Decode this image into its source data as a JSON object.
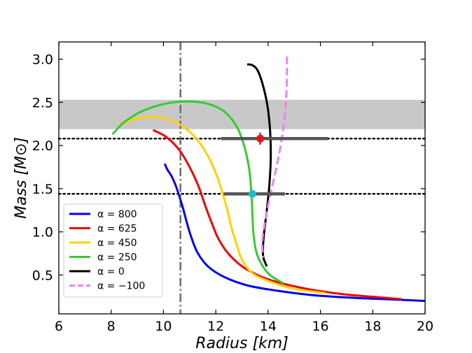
{
  "chart_data": {
    "type": "line",
    "xlabel": "Radius [km]",
    "ylabel": "Mass [M⊙]",
    "xlim": [
      6,
      20
    ],
    "ylim": [
      0.05,
      3.2
    ],
    "xticks": [
      6,
      8,
      10,
      12,
      14,
      16,
      18,
      20
    ],
    "xtick_labels": [
      "6",
      "8",
      "10",
      "12",
      "14",
      "16",
      "18",
      "20"
    ],
    "yticks": [
      0.5,
      1.0,
      1.5,
      2.0,
      2.5,
      3.0
    ],
    "ytick_labels": [
      "0.5",
      "1.0",
      "1.5",
      "2.0",
      "2.5",
      "3.0"
    ],
    "legend_position": "lower-left",
    "band": {
      "y_min": 2.19,
      "y_max": 2.53,
      "color": "#c8c8c8"
    },
    "hlines": [
      {
        "y": 2.08,
        "style": "dotted",
        "color": "#000000"
      },
      {
        "y": 1.44,
        "style": "dotted",
        "color": "#000000"
      }
    ],
    "vlines": [
      {
        "x": 10.65,
        "style": "dashdot",
        "color": "#707070"
      }
    ],
    "measurements": [
      {
        "x": 13.7,
        "y": 2.08,
        "x_err_low": 1.5,
        "x_err_high": 2.6,
        "y_err": 0.07,
        "color": "#ee1111",
        "bar_color": "#555555"
      },
      {
        "x": 13.4,
        "y": 1.44,
        "x_err_low": 1.1,
        "x_err_high": 1.25,
        "y_err": 0.02,
        "color": "#17becf",
        "bar_color": "#555555"
      }
    ],
    "series": [
      {
        "name": "α = 800",
        "color": "#0000ee",
        "dash": "solid",
        "x": [
          10.05,
          10.15,
          10.3,
          10.45,
          10.6,
          10.75,
          10.9,
          11.05,
          11.3,
          11.7,
          12.3,
          13.2,
          14.3,
          15.6,
          17.0,
          18.5,
          20.0
        ],
        "y": [
          1.79,
          1.72,
          1.65,
          1.55,
          1.42,
          1.27,
          1.1,
          0.95,
          0.76,
          0.6,
          0.48,
          0.38,
          0.32,
          0.27,
          0.24,
          0.22,
          0.2
        ]
      },
      {
        "name": "α = 625",
        "color": "#ee0000",
        "dash": "solid",
        "x": [
          9.6,
          10.1,
          10.6,
          11.0,
          11.35,
          11.6,
          11.85,
          12.1,
          12.5,
          13.1,
          14.0,
          15.3,
          16.8,
          18.3,
          19.1
        ],
        "y": [
          2.18,
          2.1,
          1.95,
          1.75,
          1.52,
          1.3,
          1.1,
          0.92,
          0.74,
          0.58,
          0.45,
          0.35,
          0.28,
          0.24,
          0.22
        ]
      },
      {
        "name": "α = 450",
        "color": "#ffd000",
        "dash": "solid",
        "x": [
          8.3,
          8.8,
          9.4,
          10.0,
          10.6,
          11.2,
          11.7,
          12.1,
          12.4,
          12.6,
          12.8,
          13.0,
          13.4,
          14.1,
          15.0,
          16.2
        ],
        "y": [
          2.24,
          2.3,
          2.33,
          2.32,
          2.25,
          2.1,
          1.88,
          1.6,
          1.3,
          1.05,
          0.85,
          0.68,
          0.52,
          0.42,
          0.34,
          0.29
        ]
      },
      {
        "name": "α = 250",
        "color": "#33cc33",
        "dash": "solid",
        "x": [
          8.05,
          8.5,
          9.2,
          10.0,
          10.8,
          11.6,
          12.3,
          12.8,
          13.1,
          13.28,
          13.36,
          13.4,
          13.45,
          13.6,
          14.0,
          14.6
        ],
        "y": [
          2.13,
          2.27,
          2.4,
          2.48,
          2.51,
          2.49,
          2.4,
          2.22,
          1.98,
          1.72,
          1.45,
          1.2,
          0.95,
          0.72,
          0.52,
          0.4
        ]
      },
      {
        "name": "α = 0",
        "color": "#000000",
        "dash": "solid",
        "x": [
          13.2,
          13.4,
          13.6,
          13.8,
          13.98,
          14.08,
          14.1,
          14.05,
          13.95,
          13.85,
          13.8,
          13.82,
          13.95
        ],
        "y": [
          2.94,
          2.93,
          2.87,
          2.7,
          2.45,
          2.15,
          1.85,
          1.55,
          1.25,
          1.0,
          0.8,
          0.7,
          0.6
        ]
      },
      {
        "name": "α = −100",
        "color": "#ee82ee",
        "dash": "dashed",
        "x": [
          14.72,
          14.72,
          14.68,
          14.6,
          14.48,
          14.3,
          14.1,
          13.9,
          13.78,
          13.8
        ],
        "y": [
          3.03,
          2.8,
          2.5,
          2.25,
          2.0,
          1.72,
          1.45,
          1.15,
          0.9,
          0.7
        ]
      }
    ]
  }
}
